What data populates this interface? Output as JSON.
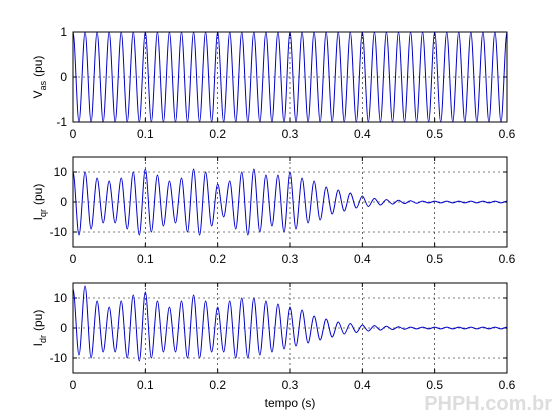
{
  "watermark": "PHPH.com.br",
  "chart_data": [
    {
      "type": "line",
      "ylabel": "V",
      "ylabel_sub": "as",
      "ylabel_unit": "(pu)",
      "xlim": [
        0,
        0.6
      ],
      "xticks": [
        0,
        0.1,
        0.2,
        0.3,
        0.4,
        0.5,
        0.6
      ],
      "ylim": [
        -1,
        1
      ],
      "yticks": [
        -1,
        0,
        1
      ],
      "grid": true,
      "x": [
        0,
        0.0083,
        0.0167,
        0.025,
        0.0333,
        0.0417,
        0.05,
        0.0583,
        0.0667,
        0.075,
        0.0833,
        0.0917,
        0.1,
        0.1083,
        0.1167,
        0.125,
        0.1333,
        0.1417,
        0.15,
        0.1583,
        0.1667,
        0.175,
        0.1833,
        0.1917,
        0.2,
        0.2083,
        0.2167,
        0.225,
        0.2333,
        0.2417,
        0.25,
        0.2583,
        0.2667,
        0.275,
        0.2833,
        0.2917,
        0.3,
        0.3083,
        0.3167,
        0.325,
        0.3333,
        0.3417,
        0.35,
        0.3583,
        0.3667,
        0.375,
        0.3833,
        0.3917,
        0.4,
        0.4083,
        0.4167,
        0.425,
        0.4333,
        0.4417,
        0.45,
        0.4583,
        0.4667,
        0.475,
        0.4833,
        0.4917,
        0.5,
        0.5083,
        0.5167,
        0.525,
        0.5333,
        0.5417,
        0.55,
        0.5583,
        0.5667,
        0.575,
        0.5833,
        0.5917,
        0.6
      ],
      "series": [
        {
          "color": "#0000c8",
          "values": [
            1,
            -1,
            1,
            -1,
            1,
            -1,
            1,
            -1,
            1,
            -1,
            1,
            -1,
            1,
            -1,
            1,
            -1,
            1,
            -1,
            1,
            -1,
            1,
            -1,
            1,
            -1,
            1,
            -1,
            1,
            -1,
            1,
            -1,
            1,
            -1,
            1,
            -1,
            1,
            -1,
            1,
            -1,
            1,
            -1,
            1,
            -1,
            1,
            -1,
            1,
            -1,
            1,
            -1,
            1,
            -1,
            1,
            -1,
            1,
            -1,
            1,
            -1,
            1,
            -1,
            1,
            -1,
            1,
            -1,
            1,
            -1,
            1,
            -1,
            1,
            -1,
            1,
            -1,
            1,
            -1,
            1
          ]
        }
      ]
    },
    {
      "type": "line",
      "ylabel": "I",
      "ylabel_sub": "qr",
      "ylabel_unit": "(pu)",
      "xlim": [
        0,
        0.6
      ],
      "xticks": [
        0,
        0.1,
        0.2,
        0.3,
        0.4,
        0.5,
        0.6
      ],
      "ylim": [
        -15,
        15
      ],
      "yticks": [
        -10,
        0,
        10
      ],
      "grid": true,
      "x": [
        0,
        0.0083,
        0.0167,
        0.025,
        0.0333,
        0.0417,
        0.05,
        0.0583,
        0.0667,
        0.075,
        0.0833,
        0.0917,
        0.1,
        0.1083,
        0.1167,
        0.125,
        0.1333,
        0.1417,
        0.15,
        0.1583,
        0.1667,
        0.175,
        0.1833,
        0.1917,
        0.2,
        0.2083,
        0.2167,
        0.225,
        0.2333,
        0.2417,
        0.25,
        0.2583,
        0.2667,
        0.275,
        0.2833,
        0.2917,
        0.3,
        0.3083,
        0.3167,
        0.325,
        0.3333,
        0.3417,
        0.35,
        0.3583,
        0.3667,
        0.375,
        0.3833,
        0.3917,
        0.4,
        0.4083,
        0.4167,
        0.425,
        0.4333,
        0.4417,
        0.45,
        0.4583,
        0.4667,
        0.475,
        0.4833,
        0.4917,
        0.5,
        0.5083,
        0.5167,
        0.525,
        0.5333,
        0.5417,
        0.55,
        0.5583,
        0.5667,
        0.575,
        0.5833,
        0.5917,
        0.6
      ],
      "series": [
        {
          "color": "#0000c8",
          "values": [
            10,
            -11,
            10,
            -9,
            8,
            -7,
            7,
            -7,
            8,
            -9,
            10,
            -11,
            11,
            -10,
            9,
            -8,
            7,
            -7,
            8,
            -10,
            11,
            -11,
            10,
            -8,
            6,
            -5,
            7,
            -9,
            10,
            -11,
            11,
            -10,
            9,
            -8,
            9,
            -10,
            10,
            -9,
            8,
            -7,
            7,
            -6,
            5,
            -4,
            4,
            -3,
            3,
            -2,
            2,
            -1.5,
            1.2,
            -1,
            0.8,
            -0.7,
            0.6,
            -0.5,
            0.4,
            -0.4,
            0.3,
            -0.3,
            0.3,
            -0.3,
            0.3,
            -0.3,
            0.3,
            -0.3,
            0.3,
            -0.3,
            0.3,
            -0.3,
            0.3,
            -0.3,
            0.3
          ]
        }
      ]
    },
    {
      "type": "line",
      "ylabel": "I",
      "ylabel_sub": "dr",
      "ylabel_unit": "(pu)",
      "xlabel": "tempo (s)",
      "xlim": [
        0,
        0.6
      ],
      "xticks": [
        0,
        0.1,
        0.2,
        0.3,
        0.4,
        0.5,
        0.6
      ],
      "ylim": [
        -15,
        15
      ],
      "yticks": [
        -10,
        0,
        10
      ],
      "grid": true,
      "x": [
        0,
        0.0083,
        0.0167,
        0.025,
        0.0333,
        0.0417,
        0.05,
        0.0583,
        0.0667,
        0.075,
        0.0833,
        0.0917,
        0.1,
        0.1083,
        0.1167,
        0.125,
        0.1333,
        0.1417,
        0.15,
        0.1583,
        0.1667,
        0.175,
        0.1833,
        0.1917,
        0.2,
        0.2083,
        0.2167,
        0.225,
        0.2333,
        0.2417,
        0.25,
        0.2583,
        0.2667,
        0.275,
        0.2833,
        0.2917,
        0.3,
        0.3083,
        0.3167,
        0.325,
        0.3333,
        0.3417,
        0.35,
        0.3583,
        0.3667,
        0.375,
        0.3833,
        0.3917,
        0.4,
        0.4083,
        0.4167,
        0.425,
        0.4333,
        0.4417,
        0.45,
        0.4583,
        0.4667,
        0.475,
        0.4833,
        0.4917,
        0.5,
        0.5083,
        0.5167,
        0.525,
        0.5333,
        0.5417,
        0.55,
        0.5583,
        0.5667,
        0.575,
        0.5833,
        0.5917,
        0.6
      ],
      "series": [
        {
          "color": "#0000c8",
          "values": [
            13,
            -9,
            14,
            -10,
            9,
            -8,
            7,
            -8,
            9,
            -10,
            11,
            -11,
            12,
            -10,
            9,
            -8,
            7,
            -8,
            9,
            -10,
            11,
            -10,
            9,
            -8,
            7,
            -8,
            9,
            -10,
            10,
            -10,
            10,
            -9,
            9,
            -8,
            8,
            -7,
            7,
            -6,
            6,
            -5,
            4,
            -4,
            3,
            -3,
            2,
            -2,
            1.5,
            -1.5,
            1,
            -1,
            0.8,
            -0.7,
            0.6,
            -0.5,
            0.4,
            -0.4,
            0.3,
            -0.3,
            0.3,
            -0.3,
            0.3,
            -0.3,
            0.3,
            -0.3,
            0.3,
            -0.3,
            0.3,
            -0.3,
            0.3,
            -0.3,
            0.3,
            -0.3,
            0.3
          ]
        }
      ]
    }
  ]
}
